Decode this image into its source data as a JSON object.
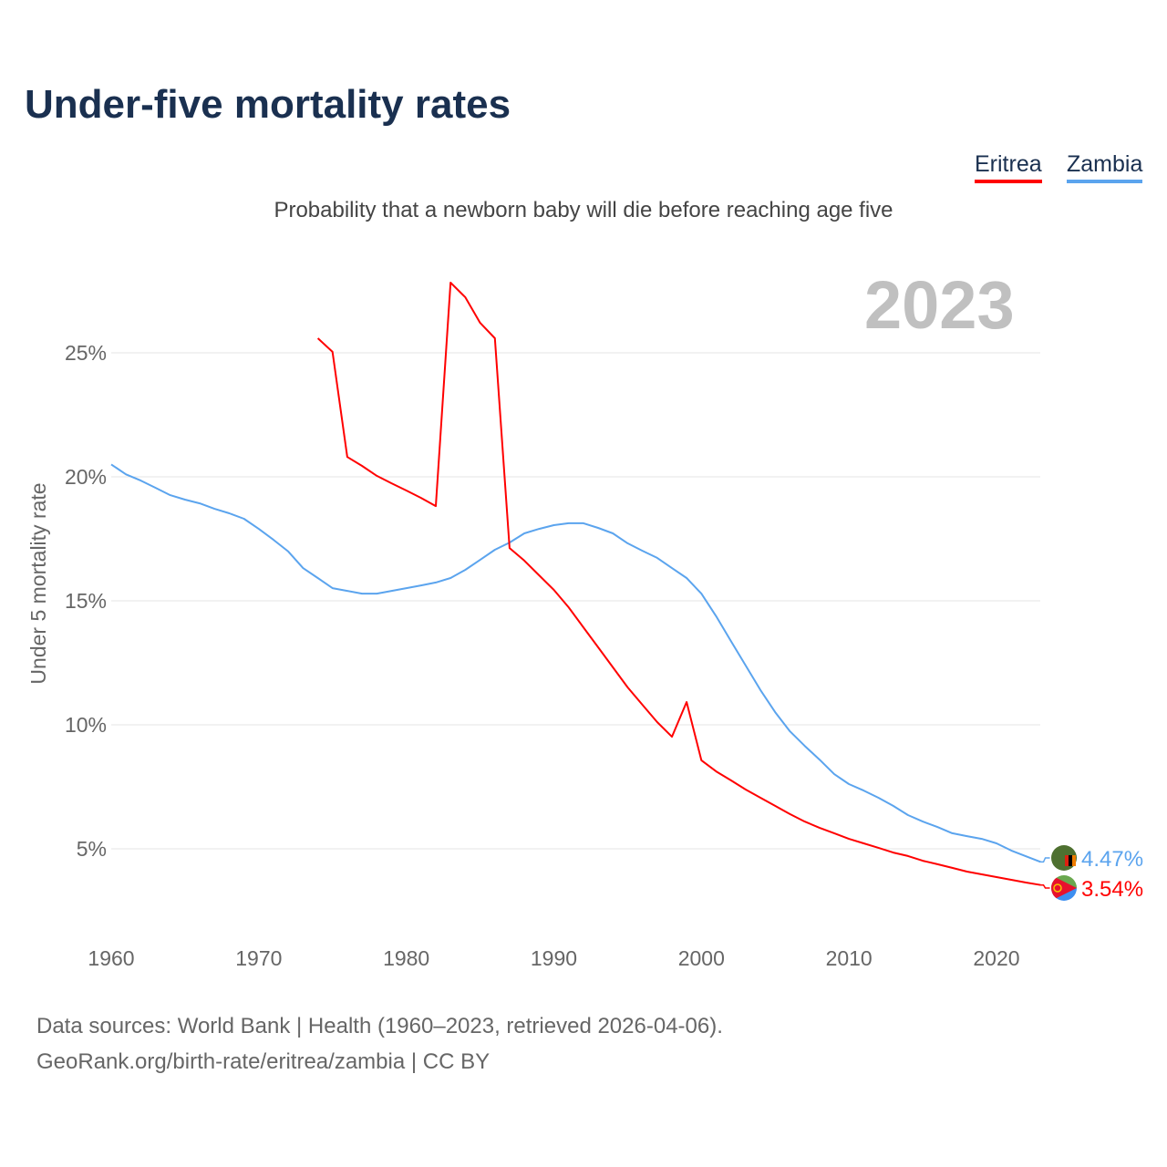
{
  "title": "Under-five mortality rates",
  "subtitle": "Probability that a newborn baby will die before reaching age five",
  "year_label": "2023",
  "legend": [
    {
      "name": "Eritrea",
      "color": "#ff0000"
    },
    {
      "name": "Zambia",
      "color": "#5ba4ee"
    }
  ],
  "source": {
    "line1": "Data sources: World Bank | Health (1960–2023, retrieved 2026-04-06).",
    "line2": "GeoRank.org/birth-rate/eritrea/zambia | CC BY"
  },
  "chart_data": {
    "type": "line",
    "title": "Under-five mortality rates",
    "ylabel": "Under 5 mortality rate",
    "xlabel": "",
    "xlim": [
      1960,
      2023
    ],
    "ylim": [
      0,
      27.8
    ],
    "xticks": [
      "1960",
      "1970",
      "1980",
      "1990",
      "2000",
      "2010",
      "2020"
    ],
    "yticks": [
      {
        "v": 5,
        "label": "5%"
      },
      {
        "v": 10,
        "label": "10%"
      },
      {
        "v": 15,
        "label": "15%"
      },
      {
        "v": 20,
        "label": "20%"
      },
      {
        "v": 25,
        "label": "25%"
      }
    ],
    "grid": true,
    "series": [
      {
        "name": "Zambia",
        "color": "#5ba4ee",
        "end_label": "4.47%",
        "start": 1960,
        "values": [
          20.5,
          20.1,
          19.85,
          19.56,
          19.26,
          19.08,
          18.93,
          18.71,
          18.53,
          18.31,
          17.9,
          17.46,
          16.99,
          16.32,
          15.92,
          15.51,
          15.4,
          15.29,
          15.29,
          15.4,
          15.51,
          15.62,
          15.74,
          15.92,
          16.25,
          16.65,
          17.06,
          17.35,
          17.72,
          17.9,
          18.05,
          18.13,
          18.13,
          17.94,
          17.72,
          17.32,
          17.02,
          16.73,
          16.32,
          15.92,
          15.29,
          14.38,
          13.38,
          12.39,
          11.4,
          10.51,
          9.74,
          9.15,
          8.6,
          8.01,
          7.61,
          7.35,
          7.06,
          6.73,
          6.36,
          6.1,
          5.88,
          5.63,
          5.51,
          5.4,
          5.22,
          4.93,
          4.7,
          4.47
        ]
      },
      {
        "name": "Eritrea",
        "color": "#ff0000",
        "end_label": "3.54%",
        "start": 1974,
        "values": [
          25.59,
          25.04,
          20.8,
          20.44,
          20.04,
          19.74,
          19.45,
          19.15,
          18.82,
          27.83,
          27.24,
          26.21,
          25.59,
          17.13,
          16.62,
          16.03,
          15.44,
          14.74,
          13.93,
          13.13,
          12.32,
          11.51,
          10.81,
          10.11,
          9.52,
          10.92,
          8.57,
          8.12,
          7.76,
          7.39,
          7.06,
          6.73,
          6.4,
          6.1,
          5.85,
          5.63,
          5.4,
          5.22,
          5.04,
          4.85,
          4.71,
          4.52,
          4.38,
          4.23,
          4.08,
          3.97,
          3.86,
          3.75,
          3.64,
          3.54
        ]
      }
    ]
  }
}
